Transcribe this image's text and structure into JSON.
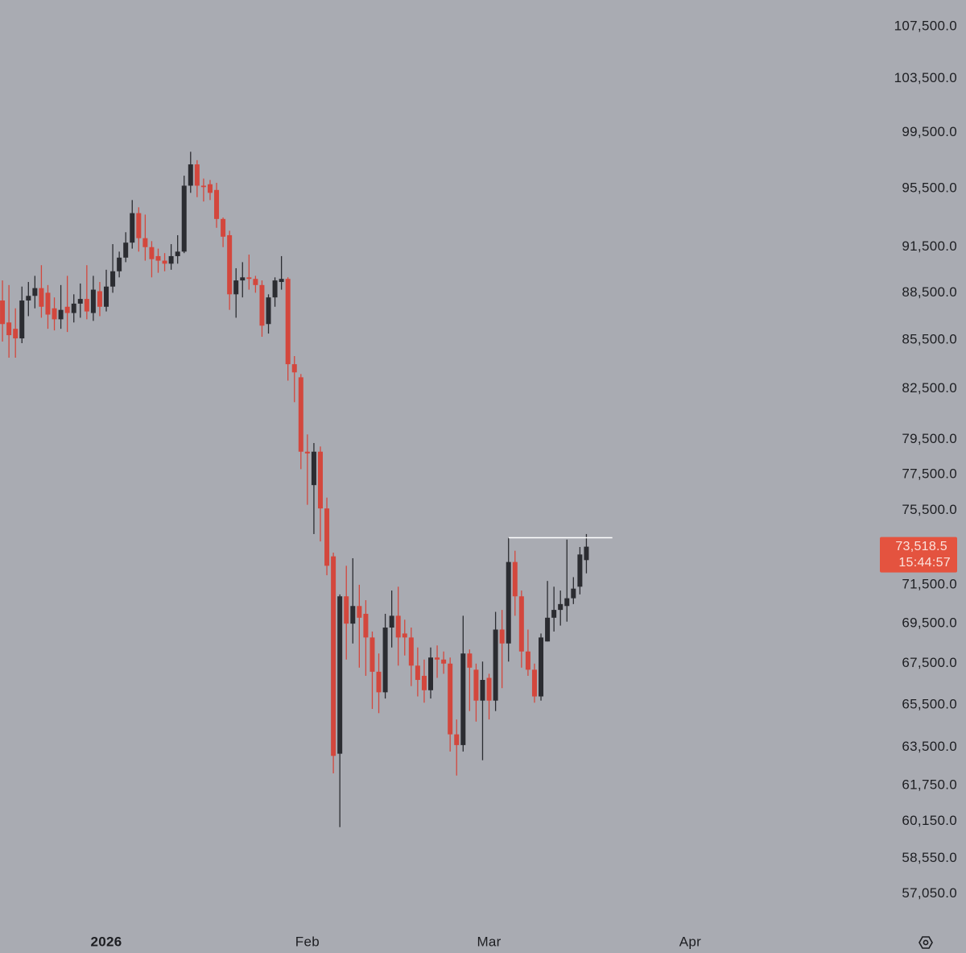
{
  "chart_data": {
    "type": "candlestick",
    "background": "#a9abb2",
    "up_color": "#2b2c31",
    "down_color": "#d3473d",
    "log_scale": true,
    "grid": false,
    "x": [
      -16,
      -15,
      -14,
      -13,
      -12,
      -11,
      -10,
      -9,
      -8,
      -7,
      -6,
      -5,
      -4,
      -3,
      -2,
      -1,
      0,
      1,
      2,
      3,
      4,
      5,
      6,
      7,
      8,
      9,
      10,
      11,
      12,
      13,
      14,
      15,
      16,
      17,
      18,
      19,
      20,
      21,
      22,
      23,
      24,
      25,
      26,
      27,
      28,
      29,
      30,
      31,
      32,
      33,
      34,
      35,
      36,
      37,
      38,
      39,
      40,
      41,
      42,
      43,
      44,
      45,
      46,
      47,
      48,
      49,
      50,
      51,
      52,
      53,
      54,
      55,
      56,
      57,
      58,
      59,
      60,
      61,
      62,
      63,
      64,
      65,
      66,
      67,
      68,
      69,
      70,
      71,
      72,
      73,
      74
    ],
    "candles": {
      "open": [
        88000,
        86600,
        86200,
        85600,
        88000,
        88300,
        88800,
        88500,
        87500,
        86800,
        87600,
        87200,
        87800,
        88100,
        87200,
        88600,
        87600,
        88900,
        89900,
        90800,
        91800,
        93800,
        92100,
        91500,
        90900,
        90600,
        90400,
        90900,
        91200,
        95700,
        97200,
        95700,
        95800,
        95400,
        93400,
        92300,
        88400,
        89300,
        89500,
        89400,
        89000,
        86500,
        88200,
        89200,
        89400,
        84000,
        83200,
        78800,
        76900,
        78800,
        75600,
        73000,
        63200,
        70900,
        69500,
        70400,
        70000,
        68800,
        67100,
        66100,
        69300,
        69900,
        69000,
        68800,
        67400,
        66900,
        66200,
        67800,
        67700,
        67500,
        64100,
        63600,
        68000,
        67200,
        65700,
        66800,
        65700,
        69200,
        68500,
        72700,
        70900,
        68100,
        67200,
        65900,
        68600,
        69800,
        70200,
        70400,
        70800,
        71400,
        72800
      ],
      "high": [
        89300,
        89000,
        87500,
        88900,
        89200,
        89600,
        90300,
        89000,
        88200,
        89000,
        89600,
        88400,
        89100,
        90300,
        89600,
        89200,
        90000,
        91700,
        91200,
        92500,
        94700,
        94200,
        93700,
        91900,
        91400,
        91100,
        91700,
        92300,
        96400,
        98100,
        97500,
        96200,
        96100,
        95900,
        93500,
        92600,
        90100,
        90500,
        91000,
        89600,
        89300,
        88400,
        89500,
        90900,
        89500,
        84500,
        83400,
        79800,
        79300,
        79100,
        76200,
        73200,
        71000,
        72500,
        72900,
        71500,
        70700,
        69100,
        68000,
        70000,
        71200,
        71400,
        69700,
        69300,
        68300,
        67700,
        68300,
        68400,
        68100,
        67800,
        64800,
        69900,
        68200,
        67500,
        67600,
        67000,
        70100,
        70200,
        74000,
        73300,
        71200,
        69200,
        67500,
        69000,
        71700,
        71400,
        71200,
        73900,
        71900,
        73500,
        74200
      ],
      "low": [
        85400,
        84400,
        84400,
        85300,
        87000,
        87500,
        86900,
        86200,
        86100,
        86200,
        86000,
        86600,
        86900,
        86800,
        86700,
        87000,
        87300,
        88500,
        89500,
        90500,
        91400,
        91200,
        90600,
        89500,
        89800,
        89900,
        90000,
        90400,
        91100,
        95200,
        94900,
        94600,
        94700,
        92800,
        91500,
        87400,
        86900,
        88200,
        88700,
        88500,
        85700,
        85900,
        87600,
        88700,
        83000,
        81700,
        77800,
        75800,
        74200,
        73800,
        72000,
        62300,
        59900,
        67700,
        68500,
        67300,
        66900,
        65300,
        65100,
        65800,
        68300,
        67400,
        67900,
        66400,
        65900,
        65600,
        65800,
        66800,
        67000,
        63300,
        62200,
        63300,
        65200,
        64700,
        62900,
        64800,
        65200,
        66300,
        67600,
        69900,
        67300,
        66900,
        65600,
        65700,
        68600,
        69100,
        69400,
        69600,
        70500,
        71000,
        72100
      ],
      "close": [
        86500,
        85800,
        85600,
        88000,
        88300,
        88800,
        87600,
        87100,
        86800,
        87400,
        87200,
        87800,
        88100,
        87300,
        88700,
        87600,
        88900,
        89900,
        90800,
        91800,
        93800,
        92100,
        91500,
        90700,
        90600,
        90400,
        90900,
        91200,
        95700,
        97200,
        95700,
        95600,
        95200,
        93400,
        92200,
        88400,
        89300,
        89500,
        89400,
        89000,
        86400,
        88200,
        89300,
        89400,
        84000,
        83500,
        78800,
        78700,
        78800,
        75600,
        72500,
        63100,
        70900,
        69500,
        70400,
        69800,
        68800,
        67100,
        66100,
        69300,
        69900,
        68800,
        68800,
        67400,
        66700,
        66200,
        67800,
        67700,
        67500,
        64100,
        63600,
        68000,
        67300,
        65700,
        66700,
        65700,
        69200,
        68500,
        72700,
        70900,
        68100,
        67200,
        65900,
        68800,
        69800,
        70200,
        70500,
        70800,
        71300,
        73100,
        73518.5
      ]
    },
    "last_price": {
      "value": 73518.5,
      "label": "73,518.5"
    },
    "price_label_color": "#e4533f",
    "countdown": "15:44:57",
    "hline": {
      "value": 74000,
      "x": [
        62,
        78
      ],
      "color": "#ffffff"
    },
    "xlim": [
      -16.38,
      118.86
    ],
    "ylim": [
      109600,
      55710
    ],
    "xticks": [
      {
        "value": 0,
        "label": "2026"
      },
      {
        "value": 31,
        "label": "Feb"
      },
      {
        "value": 59,
        "label": "Mar"
      },
      {
        "value": 90,
        "label": "Apr"
      }
    ],
    "yticks": [
      {
        "value": 107500,
        "label": "107,500.0"
      },
      {
        "value": 103500,
        "label": "103,500.0"
      },
      {
        "value": 99500,
        "label": "99,500.0"
      },
      {
        "value": 95500,
        "label": "95,500.0"
      },
      {
        "value": 91500,
        "label": "91,500.0"
      },
      {
        "value": 88500,
        "label": "88,500.0"
      },
      {
        "value": 85500,
        "label": "85,500.0"
      },
      {
        "value": 82500,
        "label": "82,500.0"
      },
      {
        "value": 79500,
        "label": "79,500.0"
      },
      {
        "value": 77500,
        "label": "77,500.0"
      },
      {
        "value": 75500,
        "label": "75,500.0"
      },
      {
        "value": 71500,
        "label": "71,500.0"
      },
      {
        "value": 69500,
        "label": "69,500.0"
      },
      {
        "value": 67500,
        "label": "67,500.0"
      },
      {
        "value": 65500,
        "label": "65,500.0"
      },
      {
        "value": 63500,
        "label": "63,500.0"
      },
      {
        "value": 61750,
        "label": "61,750.0"
      },
      {
        "value": 60150,
        "label": "60,150.0"
      },
      {
        "value": 58550,
        "label": "58,550.0"
      },
      {
        "value": 57050,
        "label": "57,050.0"
      }
    ]
  }
}
